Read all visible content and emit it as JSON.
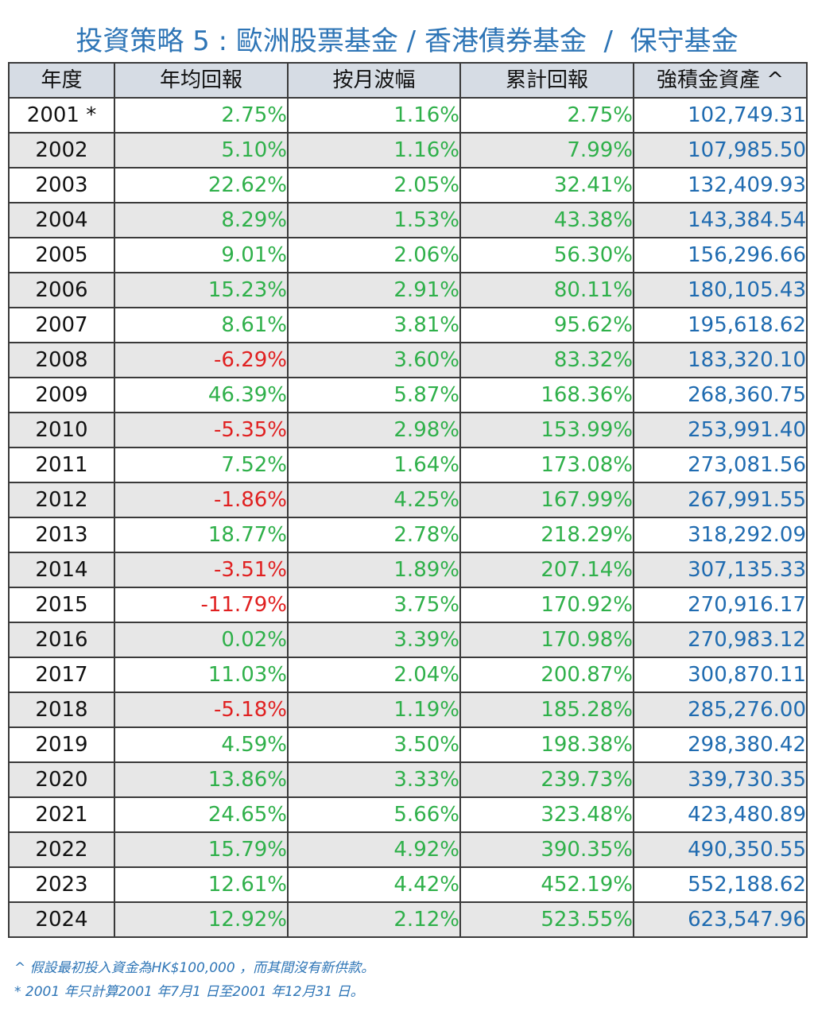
{
  "title": "投資策略 5 : 歐洲股票基金 / 香港債券基金  /  保守基金",
  "columns": [
    "年度",
    "年均回報",
    "按月波幅",
    "累計回報",
    "強積金資產 ^"
  ],
  "rows": [
    {
      "year": "2001 *",
      "annual": "2.75%",
      "volatility": "1.16%",
      "cumulative": "2.75%",
      "asset": "102,749.31"
    },
    {
      "year": "2002",
      "annual": "5.10%",
      "volatility": "1.16%",
      "cumulative": "7.99%",
      "asset": "107,985.50"
    },
    {
      "year": "2003",
      "annual": "22.62%",
      "volatility": "2.05%",
      "cumulative": "32.41%",
      "asset": "132,409.93"
    },
    {
      "year": "2004",
      "annual": "8.29%",
      "volatility": "1.53%",
      "cumulative": "43.38%",
      "asset": "143,384.54"
    },
    {
      "year": "2005",
      "annual": "9.01%",
      "volatility": "2.06%",
      "cumulative": "56.30%",
      "asset": "156,296.66"
    },
    {
      "year": "2006",
      "annual": "15.23%",
      "volatility": "2.91%",
      "cumulative": "80.11%",
      "asset": "180,105.43"
    },
    {
      "year": "2007",
      "annual": "8.61%",
      "volatility": "3.81%",
      "cumulative": "95.62%",
      "asset": "195,618.62"
    },
    {
      "year": "2008",
      "annual": "-6.29%",
      "volatility": "3.60%",
      "cumulative": "83.32%",
      "asset": "183,320.10"
    },
    {
      "year": "2009",
      "annual": "46.39%",
      "volatility": "5.87%",
      "cumulative": "168.36%",
      "asset": "268,360.75"
    },
    {
      "year": "2010",
      "annual": "-5.35%",
      "volatility": "2.98%",
      "cumulative": "153.99%",
      "asset": "253,991.40"
    },
    {
      "year": "2011",
      "annual": "7.52%",
      "volatility": "1.64%",
      "cumulative": "173.08%",
      "asset": "273,081.56"
    },
    {
      "year": "2012",
      "annual": "-1.86%",
      "volatility": "4.25%",
      "cumulative": "167.99%",
      "asset": "267,991.55"
    },
    {
      "year": "2013",
      "annual": "18.77%",
      "volatility": "2.78%",
      "cumulative": "218.29%",
      "asset": "318,292.09"
    },
    {
      "year": "2014",
      "annual": "-3.51%",
      "volatility": "1.89%",
      "cumulative": "207.14%",
      "asset": "307,135.33"
    },
    {
      "year": "2015",
      "annual": "-11.79%",
      "volatility": "3.75%",
      "cumulative": "170.92%",
      "asset": "270,916.17"
    },
    {
      "year": "2016",
      "annual": "0.02%",
      "volatility": "3.39%",
      "cumulative": "170.98%",
      "asset": "270,983.12"
    },
    {
      "year": "2017",
      "annual": "11.03%",
      "volatility": "2.04%",
      "cumulative": "200.87%",
      "asset": "300,870.11"
    },
    {
      "year": "2018",
      "annual": "-5.18%",
      "volatility": "1.19%",
      "cumulative": "185.28%",
      "asset": "285,276.00"
    },
    {
      "year": "2019",
      "annual": "4.59%",
      "volatility": "3.50%",
      "cumulative": "198.38%",
      "asset": "298,380.42"
    },
    {
      "year": "2020",
      "annual": "13.86%",
      "volatility": "3.33%",
      "cumulative": "239.73%",
      "asset": "339,730.35"
    },
    {
      "year": "2021",
      "annual": "24.65%",
      "volatility": "5.66%",
      "cumulative": "323.48%",
      "asset": "423,480.89"
    },
    {
      "year": "2022",
      "annual": "15.79%",
      "volatility": "4.92%",
      "cumulative": "390.35%",
      "asset": "490,350.55"
    },
    {
      "year": "2023",
      "annual": "12.61%",
      "volatility": "4.42%",
      "cumulative": "452.19%",
      "asset": "552,188.62"
    },
    {
      "year": "2024",
      "annual": "12.92%",
      "volatility": "2.12%",
      "cumulative": "523.55%",
      "asset": "623,547.96"
    }
  ],
  "notes": [
    "^ 假設最初投入資金為HK$100,000 ，而其間沒有新供款。",
    "* 2001 年只計算2001 年7月1 日至2001 年12月31 日。"
  ],
  "colors": {
    "title": "#2e75b6",
    "header_bg": "#d6dce4",
    "row_alt_bg": "#e7e7e7",
    "positive": "#2fb04a",
    "negative": "#e02020",
    "asset": "#1f6bb0",
    "notes": "#2e75b6"
  }
}
